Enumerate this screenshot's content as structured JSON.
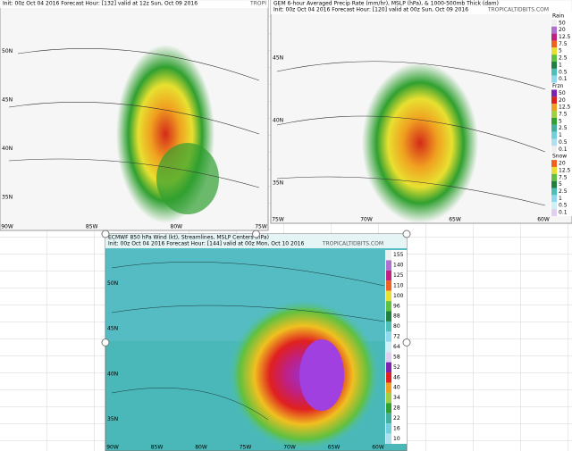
{
  "panels": [
    {
      "title": null,
      "init": "Init: 00z Oct 04 2016   Forecast Hour: [132]   valid at 12z Sun, Oct 09 2016",
      "credit": "TROPI",
      "lat_labels": [
        "50N",
        "45N",
        "40N",
        "35N"
      ],
      "lon_labels": [
        "90W",
        "85W",
        "80W",
        "75W"
      ]
    },
    {
      "title": "GEM 6-hour Averaged Precip Rate (mm/hr), MSLP (hPa), & 1000-500mb Thick (dam)",
      "init": "Init: 00z Oct 04 2016   Forecast Hour: [120]   valid at 00z Sun, Oct 09 2016",
      "credit": "TROPICALTIDBITS.COM",
      "lat_labels": [
        "45N",
        "40N",
        "35N"
      ],
      "lon_labels": [
        "75W",
        "70W",
        "65W",
        "60W"
      ],
      "legend": [
        {
          "name": "Rain",
          "labels": [
            "50",
            "20",
            "12.5",
            "7.5",
            "5",
            "2.5",
            "1",
            "0.5",
            "0.1"
          ]
        },
        {
          "name": "Frzn",
          "labels": [
            "50",
            "20",
            "12.5",
            "7.5",
            "5",
            "2.5",
            "1",
            "0.5",
            "0.1"
          ]
        },
        {
          "name": "Snow",
          "labels": [
            "20",
            "12.5",
            "7.5",
            "5",
            "2.5",
            "1",
            "0.5",
            "0.1"
          ]
        }
      ]
    },
    {
      "title": "ECMWF 850 hPa Wind (kt), Streamlines, MSLP Centers (hPa)",
      "init": "Init: 00z Oct 04 2016   Forecast Hour: [144]   valid at 00z Mon, Oct 10 2016",
      "credit": "TROPICALTIDBITS.COM",
      "lat_labels": [
        "50N",
        "45N",
        "40N",
        "35N"
      ],
      "lon_labels": [
        "90W",
        "85W",
        "80W",
        "75W",
        "70W",
        "65W",
        "60W"
      ],
      "legend": [
        {
          "name": null,
          "labels": [
            "155",
            "140",
            "125",
            "110",
            "100",
            "96",
            "88",
            "80",
            "72",
            "64",
            "58",
            "52",
            "46",
            "40",
            "34",
            "28",
            "22",
            "16",
            "10"
          ]
        }
      ]
    }
  ]
}
